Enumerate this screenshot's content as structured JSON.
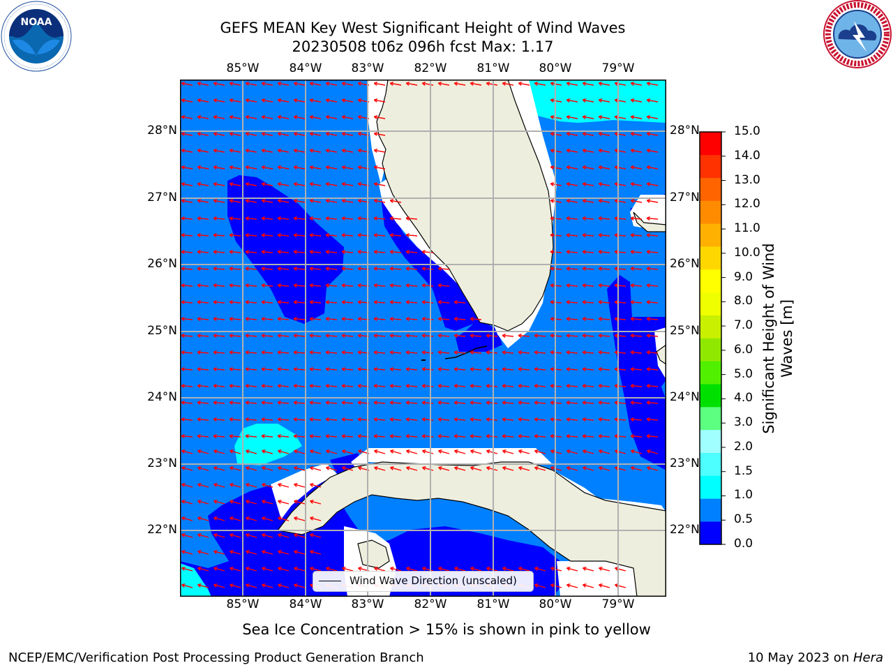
{
  "header": {
    "title_line1": "GEFS MEAN Key West Significant Height of Wind Waves",
    "title_line2": "20230508 t06z 096h fcst   Max: 1.17"
  },
  "logos": {
    "noaa": {
      "text": "NOAA",
      "ring_text": "NATIONAL OCEANIC AND ATMOSPHERIC ADMINISTRATION · U.S. DEPARTMENT OF COMMERCE"
    },
    "nws": {
      "ring_text": "NATIONAL WEATHER SERVICE"
    }
  },
  "map": {
    "lon_ticks": [
      "85°W",
      "84°W",
      "83°W",
      "82°W",
      "81°W",
      "80°W",
      "79°W"
    ],
    "lat_ticks": [
      "28°N",
      "27°N",
      "26°N",
      "25°N",
      "24°N",
      "23°N",
      "22°N"
    ],
    "legend_label": "Wind Wave Direction (unscaled)",
    "colors": {
      "land": "#eeeede",
      "coastline": "#000000",
      "grid": "#b0b0b0",
      "arrows": "#ff0000",
      "band_0_0_5": "#0000ff",
      "band_0_5_1_0": "#0080ff",
      "band_1_0_1_5": "#00ffff"
    }
  },
  "colorbar": {
    "label_line1": "Significant Height of Wind",
    "label_line2": "Waves [m]",
    "ticks": [
      "15.0",
      "14.0",
      "13.0",
      "12.0",
      "11.0",
      "10.0",
      "9.0",
      "8.0",
      "7.0",
      "6.0",
      "5.0",
      "4.0",
      "3.0",
      "2.0",
      "1.5",
      "1.0",
      "0.5",
      "0.0"
    ],
    "colors": [
      "#0000ff",
      "#0080ff",
      "#00ffff",
      "#4dffff",
      "#a0ffff",
      "#5cff80",
      "#00e000",
      "#50f000",
      "#90e800",
      "#c8f000",
      "#f0ff00",
      "#ffff00",
      "#ffd700",
      "#ffb000",
      "#ff8c00",
      "#ff6400",
      "#ff3200",
      "#ff0000"
    ]
  },
  "notes": {
    "sea_ice": "Sea Ice Concentration > 15% is shown in pink to yellow"
  },
  "footer": {
    "left": "NCEP/EMC/Verification Post Processing Product Generation Branch",
    "right_date": "10 May 2023 on ",
    "right_host": "Hera"
  }
}
